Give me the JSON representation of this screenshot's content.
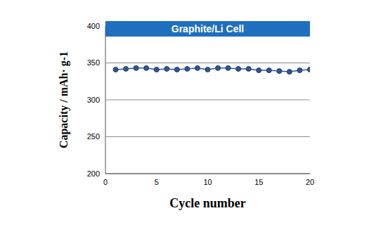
{
  "chart_data": {
    "type": "line",
    "title": "Graphite/Li Cell",
    "x_label": "Cycle number",
    "y_label": "Capacity / mAh· g-1",
    "x": [
      1,
      2,
      3,
      4,
      5,
      6,
      7,
      8,
      9,
      10,
      11,
      12,
      13,
      14,
      15,
      16,
      17,
      18,
      19,
      20
    ],
    "values": [
      341,
      342,
      343,
      343,
      341,
      342,
      341,
      342,
      343,
      341,
      343,
      343,
      342,
      342,
      340,
      340,
      339,
      338,
      340,
      341
    ],
    "color": "#2f5597",
    "marker": "circle",
    "xlim": [
      0,
      20
    ],
    "xticks": [
      0,
      5,
      10,
      15,
      20
    ],
    "ylim": [
      200,
      400
    ],
    "yticks": [
      200,
      250,
      300,
      350,
      400
    ],
    "grid": true
  }
}
